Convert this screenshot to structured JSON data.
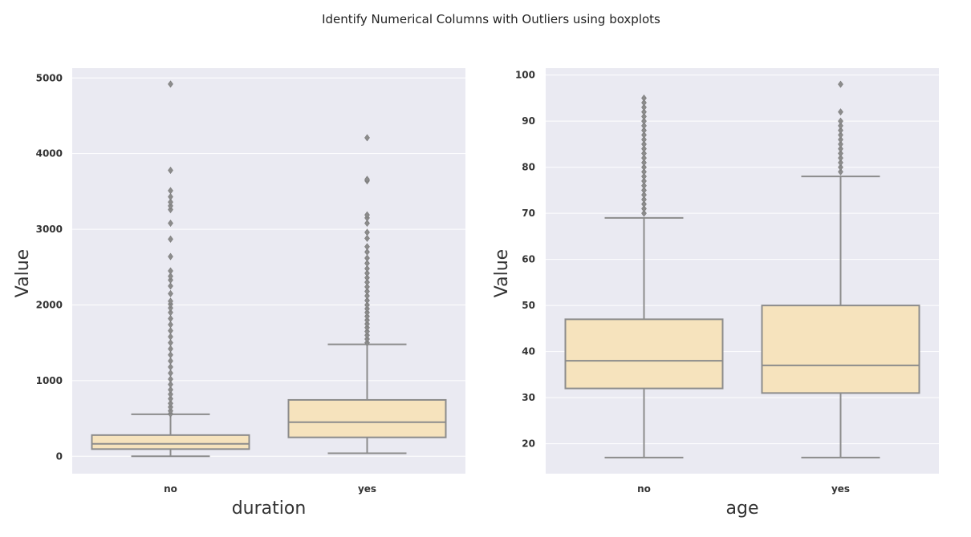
{
  "figure": {
    "suptitle": "Identify Numerical Columns with Outliers using boxplots"
  },
  "colors": {
    "box_fill": "#f6e3bd",
    "box_line": "#8c8c8c",
    "panel_background": "#eaeaf2",
    "grid": "#ffffff"
  },
  "chart_data": [
    {
      "type": "box",
      "xlabel": "duration",
      "ylabel": "Value",
      "categories": [
        "no",
        "yes"
      ],
      "ylim": [
        -230,
        5130
      ],
      "yticks": [
        0,
        1000,
        2000,
        3000,
        4000,
        5000
      ],
      "grid": true,
      "boxes": [
        {
          "category": "no",
          "whisker_low": 0,
          "q1": 95,
          "median": 165,
          "q3": 280,
          "whisker_high": 555,
          "outliers": [
            560,
            600,
            650,
            700,
            760,
            820,
            880,
            950,
            1020,
            1100,
            1180,
            1260,
            1340,
            1420,
            1500,
            1580,
            1660,
            1740,
            1820,
            1900,
            1960,
            2010,
            2050,
            2150,
            2250,
            2330,
            2380,
            2450,
            2640,
            2870,
            3080,
            3260,
            3310,
            3360,
            3430,
            3510,
            3780,
            4920
          ]
        },
        {
          "category": "yes",
          "whisker_low": 40,
          "q1": 250,
          "median": 450,
          "q3": 745,
          "whisker_high": 1480,
          "outliers": [
            1500,
            1550,
            1600,
            1650,
            1700,
            1750,
            1800,
            1850,
            1900,
            1950,
            2000,
            2060,
            2120,
            2180,
            2240,
            2300,
            2360,
            2420,
            2480,
            2550,
            2620,
            2700,
            2770,
            2880,
            2960,
            3080,
            3150,
            3190,
            3640,
            3660,
            4210
          ]
        }
      ]
    },
    {
      "type": "box",
      "xlabel": "age",
      "ylabel": "Value",
      "categories": [
        "no",
        "yes"
      ],
      "ylim": [
        13.5,
        101.5
      ],
      "yticks": [
        20,
        30,
        40,
        50,
        60,
        70,
        80,
        90,
        100
      ],
      "grid": true,
      "boxes": [
        {
          "category": "no",
          "whisker_low": 17,
          "q1": 32,
          "median": 38,
          "q3": 47,
          "whisker_high": 69,
          "outliers": [
            70,
            71,
            72,
            73,
            74,
            75,
            76,
            77,
            78,
            79,
            80,
            81,
            82,
            83,
            84,
            85,
            86,
            87,
            88,
            89,
            90,
            91,
            92,
            93,
            94,
            95
          ]
        },
        {
          "category": "yes",
          "whisker_low": 17,
          "q1": 31,
          "median": 37,
          "q3": 50,
          "whisker_high": 78,
          "outliers": [
            79,
            80,
            81,
            82,
            83,
            84,
            85,
            86,
            87,
            88,
            89,
            90,
            92,
            98
          ]
        }
      ]
    }
  ]
}
